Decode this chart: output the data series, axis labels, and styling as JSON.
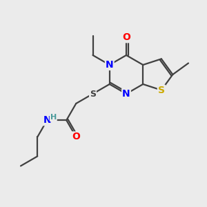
{
  "bg_color": "#ebebeb",
  "bond_color": "#404040",
  "atom_colors": {
    "N": "#0000ff",
    "O": "#ff0000",
    "S_ring": "#ccaa00",
    "S_link": "#404040",
    "H": "#4a9a9a"
  },
  "bond_width": 1.6,
  "font_size": 9,
  "s": 28
}
